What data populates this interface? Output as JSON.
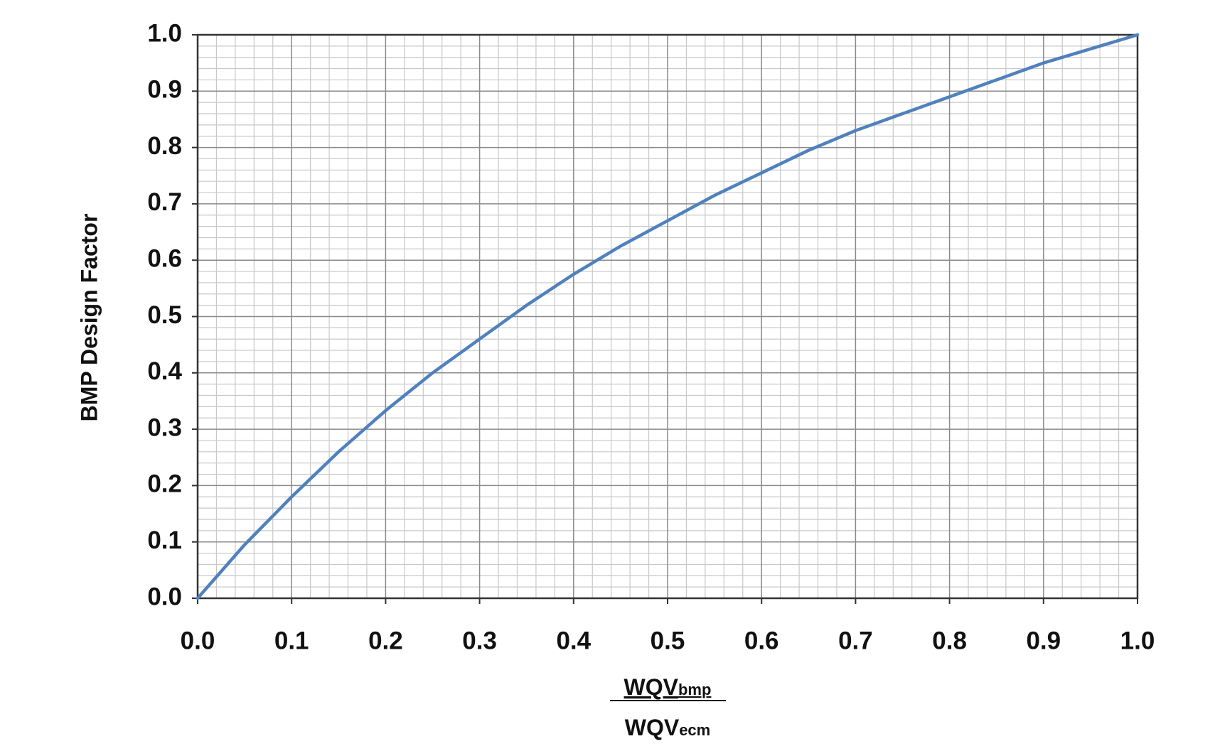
{
  "chart_data": {
    "type": "line",
    "ylabel": "BMP Design Factor",
    "xlabel_numerator": "WQV",
    "xlabel_numerator_sub": "bmp",
    "xlabel_denominator": "WQV",
    "xlabel_denominator_sub": "ecm",
    "x": [
      0,
      0.05,
      0.1,
      0.15,
      0.2,
      0.25,
      0.3,
      0.35,
      0.4,
      0.45,
      0.5,
      0.55,
      0.6,
      0.65,
      0.7,
      0.75,
      0.8,
      0.85,
      0.9,
      0.95,
      1.0
    ],
    "series": [
      {
        "color": "#4f81bd",
        "values": [
          0,
          0.095,
          0.18,
          0.26,
          0.333,
          0.4,
          0.46,
          0.52,
          0.575,
          0.625,
          0.67,
          0.715,
          0.755,
          0.795,
          0.83,
          0.86,
          0.89,
          0.92,
          0.95,
          0.975,
          1.0
        ]
      }
    ],
    "xlim": [
      0,
      1
    ],
    "ylim": [
      0,
      1
    ],
    "xticks": [
      {
        "value": 0,
        "label": "0.0"
      },
      0.1,
      0.2,
      0.3,
      0.4,
      0.5,
      0.6,
      0.7,
      0.8,
      0.9,
      {
        "value": 1,
        "label": "1.0"
      }
    ],
    "yticks": [
      {
        "value": 0,
        "label": "0.0"
      },
      0.1,
      0.2,
      0.3,
      0.4,
      0.5,
      0.6,
      0.7,
      0.8,
      0.9,
      {
        "value": 1,
        "label": "1.0"
      }
    ],
    "grid": true,
    "minor_grid": 5
  }
}
